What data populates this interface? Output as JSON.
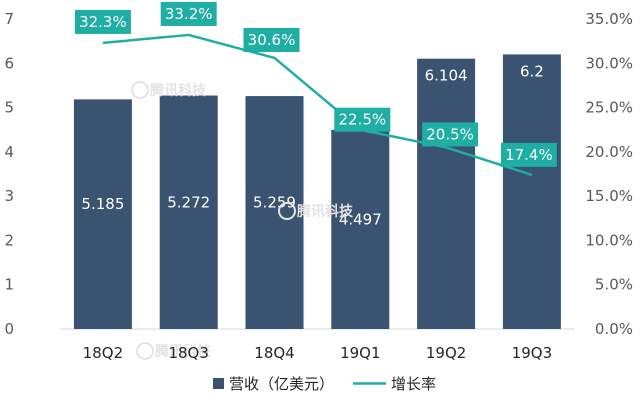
{
  "chart_data": {
    "type": "bar+line",
    "categories": [
      "18Q2",
      "18Q3",
      "18Q4",
      "19Q1",
      "19Q2",
      "19Q3"
    ],
    "series": [
      {
        "name": "营收（亿美元）",
        "type": "bar",
        "axis": "left",
        "values": [
          5.185,
          5.272,
          5.259,
          4.497,
          6.104,
          6.2
        ],
        "labels": [
          "5.185",
          "5.272",
          "5.259",
          "4.497",
          "6.104",
          "6.2"
        ]
      },
      {
        "name": "增长率",
        "type": "line",
        "axis": "right",
        "values": [
          32.3,
          33.2,
          30.6,
          22.5,
          20.5,
          17.4
        ],
        "labels": [
          "32.3%",
          "33.2%",
          "30.6%",
          "22.5%",
          "20.5%",
          "17.4%"
        ]
      }
    ],
    "y_left": {
      "min": 0,
      "max": 7,
      "ticks": [
        "0",
        "1",
        "2",
        "3",
        "4",
        "5",
        "6",
        "7"
      ]
    },
    "y_right": {
      "min": 0,
      "max": 35,
      "ticks": [
        "0.0%",
        "5.0%",
        "10.0%",
        "15.0%",
        "20.0%",
        "25.0%",
        "30.0%",
        "35.0%"
      ]
    },
    "grid": false,
    "legend_position": "bottom",
    "colors": {
      "bar": "#3a5370",
      "line": "#1eaea3",
      "rate_box": "#1eaea3"
    }
  },
  "watermarks": [
    "腾讯科技",
    "腾讯科技",
    "腾讯科技"
  ]
}
